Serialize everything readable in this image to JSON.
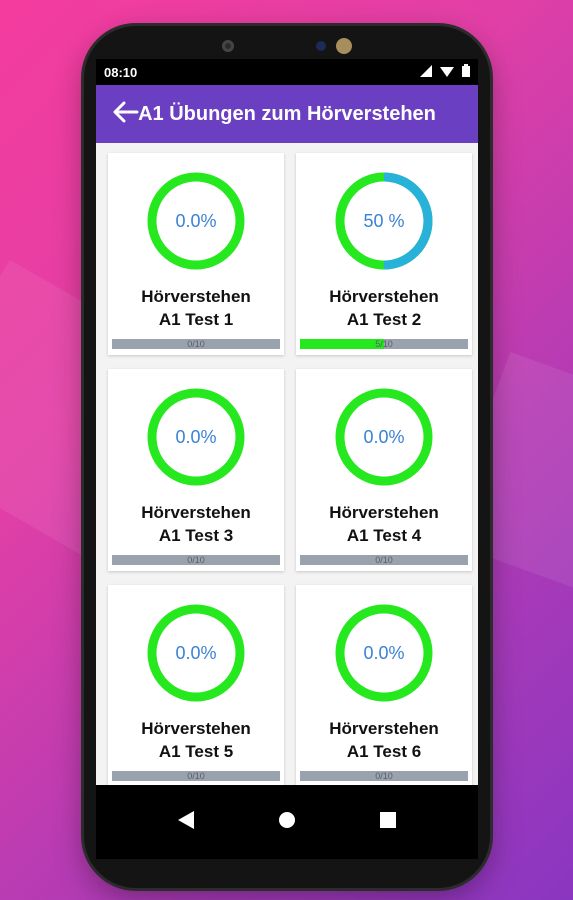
{
  "status_bar": {
    "time": "08:10"
  },
  "app_bar": {
    "title": "A1 Übungen zum Hörverstehen"
  },
  "colors": {
    "app_bar": "#6b3fc1",
    "ring_green": "#26e81e",
    "ring_blue": "#29b2d9",
    "percent_text": "#3b82d6",
    "bar_grey": "#9aa3ad"
  },
  "icons": {
    "back": "arrow-left-icon",
    "signal": "signal-icon",
    "wifi": "wifi-icon",
    "battery": "battery-icon",
    "nav_back": "triangle-back-icon",
    "nav_home": "circle-home-icon",
    "nav_recents": "square-recents-icon"
  },
  "tests": [
    {
      "percent_label": "0.0%",
      "progress": 0.0,
      "line1": "Hörverstehen",
      "line2": "A1 Test 1",
      "bar_label": "0/10"
    },
    {
      "percent_label": "50 %",
      "progress": 0.5,
      "line1": "Hörverstehen",
      "line2": "A1 Test 2",
      "bar_label": "5/10"
    },
    {
      "percent_label": "0.0%",
      "progress": 0.0,
      "line1": "Hörverstehen",
      "line2": "A1 Test 3",
      "bar_label": "0/10"
    },
    {
      "percent_label": "0.0%",
      "progress": 0.0,
      "line1": "Hörverstehen",
      "line2": "A1 Test 4",
      "bar_label": "0/10"
    },
    {
      "percent_label": "0.0%",
      "progress": 0.0,
      "line1": "Hörverstehen",
      "line2": "A1 Test 5",
      "bar_label": "0/10"
    },
    {
      "percent_label": "0.0%",
      "progress": 0.0,
      "line1": "Hörverstehen",
      "line2": "A1 Test 6",
      "bar_label": "0/10"
    }
  ]
}
